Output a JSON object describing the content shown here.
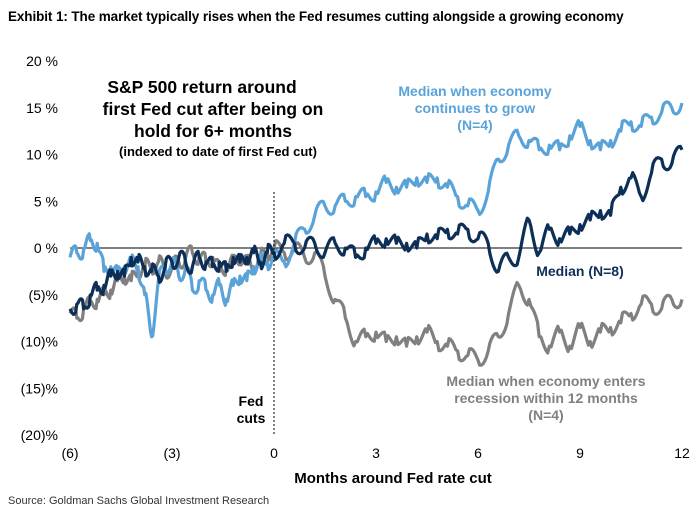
{
  "exhibit_title": "Exhibit 1: The market typically rises when the Fed resumes cutting alongside a growing economy",
  "source": "Source: Goldman Sachs Global Investment Research",
  "chart_data": {
    "type": "line",
    "title_lines": [
      "S&P 500 return around",
      "first Fed cut after being on",
      "hold for 6+ months"
    ],
    "subtitle": "(indexed to date of first Fed cut)",
    "xlabel": "Months around Fed rate cut",
    "ylabel": "",
    "xlim": [
      -6,
      12
    ],
    "ylim": [
      -20,
      20
    ],
    "x_ticks": [
      -6,
      -3,
      0,
      3,
      6,
      9,
      12
    ],
    "x_tick_labels": [
      "(6)",
      "(3)",
      "0",
      "3",
      "6",
      "9",
      "12"
    ],
    "y_ticks": [
      20,
      15,
      10,
      5,
      0,
      -5,
      -10,
      -15,
      -20
    ],
    "y_tick_labels": [
      "20 %",
      "15 %",
      "10 %",
      "5 %",
      "0 %",
      "(5)%",
      "(10)%",
      "(15)%",
      "(20)%"
    ],
    "vline": {
      "x": 0,
      "label_lines": [
        "Fed",
        "cuts"
      ]
    },
    "colors": {
      "grow": "#5aa3d9",
      "median": "#0d2f57",
      "recession": "#808080"
    },
    "series": [
      {
        "name": "Median when economy continues to grow (N=4)",
        "label_lines": [
          "Median when economy",
          "continues to grow",
          "(N=4)"
        ],
        "color": "#5aa3d9",
        "x": [
          -6,
          -5.8,
          -5.6,
          -5.4,
          -5.2,
          -5.0,
          -4.8,
          -4.6,
          -4.4,
          -4.2,
          -4.0,
          -3.8,
          -3.6,
          -3.4,
          -3.2,
          -3.0,
          -2.8,
          -2.6,
          -2.4,
          -2.2,
          -2.0,
          -1.8,
          -1.6,
          -1.4,
          -1.2,
          -1.0,
          -0.8,
          -0.6,
          -0.4,
          -0.2,
          0,
          0.3,
          0.6,
          0.9,
          1.2,
          1.5,
          1.8,
          2.1,
          2.4,
          2.7,
          3.0,
          3.3,
          3.6,
          3.9,
          4.2,
          4.5,
          4.8,
          5.1,
          5.4,
          5.7,
          6.0,
          6.3,
          6.6,
          6.9,
          7.2,
          7.5,
          7.8,
          8.1,
          8.4,
          8.7,
          9.0,
          9.3,
          9.6,
          9.9,
          10.2,
          10.5,
          10.8,
          11.1,
          11.4,
          11.7,
          12
        ],
        "values": [
          -1,
          -0.5,
          -0.2,
          0.8,
          0.5,
          -2.5,
          -2.0,
          -2.8,
          -2.0,
          -1.5,
          -2.0,
          -5.0,
          -9.5,
          -3.5,
          -2.0,
          -1.5,
          -3.0,
          -2.0,
          -4.5,
          -3.5,
          -4.5,
          -5.0,
          -4.0,
          -5.5,
          -4.0,
          -3.0,
          -3.5,
          -2.0,
          -1.5,
          -1.5,
          -1.0,
          -1.5,
          0.5,
          2.0,
          3.5,
          4.5,
          4.5,
          5.0,
          5.5,
          5.5,
          6.0,
          7.0,
          6.5,
          6.5,
          7.5,
          7.0,
          7.5,
          6.5,
          5.5,
          4.5,
          4.0,
          6.0,
          9.5,
          11.0,
          12.0,
          11.5,
          10.5,
          11.0,
          10.5,
          12.0,
          13.0,
          11.5,
          10.5,
          11.5,
          12.5,
          13.5,
          13.0,
          14.0,
          14.5,
          15.0,
          15.5
        ]
      },
      {
        "name": "Median (N=8)",
        "label_lines": [
          "Median (N=8)"
        ],
        "color": "#0d2f57",
        "x": [
          -6,
          -5.8,
          -5.6,
          -5.4,
          -5.2,
          -5.0,
          -4.8,
          -4.6,
          -4.4,
          -4.2,
          -4.0,
          -3.8,
          -3.6,
          -3.4,
          -3.2,
          -3.0,
          -2.8,
          -2.6,
          -2.4,
          -2.2,
          -2.0,
          -1.8,
          -1.6,
          -1.4,
          -1.2,
          -1.0,
          -0.8,
          -0.6,
          -0.4,
          -0.2,
          0,
          0.3,
          0.6,
          0.9,
          1.2,
          1.5,
          1.8,
          2.1,
          2.4,
          2.7,
          3.0,
          3.3,
          3.6,
          3.9,
          4.2,
          4.5,
          4.8,
          5.1,
          5.4,
          5.7,
          6.0,
          6.3,
          6.6,
          6.9,
          7.2,
          7.5,
          7.8,
          8.1,
          8.4,
          8.7,
          9.0,
          9.3,
          9.6,
          9.9,
          10.2,
          10.5,
          10.8,
          11.1,
          11.4,
          11.7,
          12
        ],
        "values": [
          -6.5,
          -6.0,
          -6.5,
          -5.0,
          -4.5,
          -4.0,
          -3.0,
          -2.5,
          -3.0,
          -1.0,
          -1.5,
          -2.0,
          -2.5,
          -3.0,
          -2.0,
          -1.5,
          -1.0,
          -1.5,
          -2.0,
          -1.0,
          -1.5,
          -2.0,
          -1.5,
          -2.5,
          -1.0,
          -1.5,
          -1.0,
          -0.5,
          -1.5,
          -0.5,
          -0.5,
          0.5,
          0.5,
          0,
          0.5,
          -0.5,
          0.5,
          0,
          -1.0,
          0,
          0.5,
          1.0,
          0.5,
          0.5,
          0,
          1.5,
          1.0,
          2.0,
          1.5,
          2.0,
          1.0,
          0.5,
          -2.5,
          -1.0,
          -1.0,
          3.0,
          -0.5,
          2.0,
          1.0,
          1.5,
          2.5,
          3.0,
          4.0,
          3.5,
          6.5,
          7.5,
          5.5,
          8.0,
          9.5,
          9.0,
          10.5
        ]
      },
      {
        "name": "Median when economy enters recession within 12 months (N=4)",
        "label_lines": [
          "Median when economy  enters",
          "recession within 12 months",
          "(N=4)"
        ],
        "color": "#808080",
        "x": [
          -6,
          -5.8,
          -5.6,
          -5.4,
          -5.2,
          -5.0,
          -4.8,
          -4.6,
          -4.4,
          -4.2,
          -4.0,
          -3.8,
          -3.6,
          -3.4,
          -3.2,
          -3.0,
          -2.8,
          -2.6,
          -2.4,
          -2.2,
          -2.0,
          -1.8,
          -1.6,
          -1.4,
          -1.2,
          -1.0,
          -0.8,
          -0.6,
          -0.4,
          -0.2,
          0,
          0.3,
          0.6,
          0.9,
          1.2,
          1.5,
          1.8,
          2.1,
          2.4,
          2.7,
          3.0,
          3.3,
          3.6,
          3.9,
          4.2,
          4.5,
          4.8,
          5.1,
          5.4,
          5.7,
          6.0,
          6.3,
          6.6,
          6.9,
          7.2,
          7.5,
          7.8,
          8.1,
          8.4,
          8.7,
          9.0,
          9.3,
          9.6,
          9.9,
          10.2,
          10.5,
          10.8,
          11.1,
          11.4,
          11.7,
          12
        ],
        "values": [
          -7.0,
          -7.5,
          -6.5,
          -6.0,
          -5.5,
          -5.0,
          -4.5,
          -3.5,
          -3.0,
          -3.5,
          -2.5,
          -2.0,
          -2.0,
          -1.5,
          -2.5,
          -2.0,
          -1.5,
          -1.0,
          -0.5,
          -1.0,
          -1.5,
          -1.0,
          -2.5,
          -2.0,
          -1.5,
          -1.0,
          -1.5,
          -2.0,
          -1.0,
          -0.5,
          0,
          -0.5,
          0,
          -1.0,
          -0.5,
          -3.0,
          -5.5,
          -7.5,
          -10.0,
          -9.5,
          -9.0,
          -10.0,
          -9.5,
          -10.5,
          -9.5,
          -9.0,
          -10.0,
          -10.5,
          -11.0,
          -11.5,
          -12.0,
          -11.0,
          -9.5,
          -7.0,
          -4.0,
          -5.5,
          -9.5,
          -10.5,
          -9.0,
          -10.5,
          -8.5,
          -10.0,
          -9.0,
          -8.5,
          -8.0,
          -7.0,
          -6.0,
          -6.0,
          -6.5,
          -5.5,
          -5.5
        ]
      }
    ]
  }
}
